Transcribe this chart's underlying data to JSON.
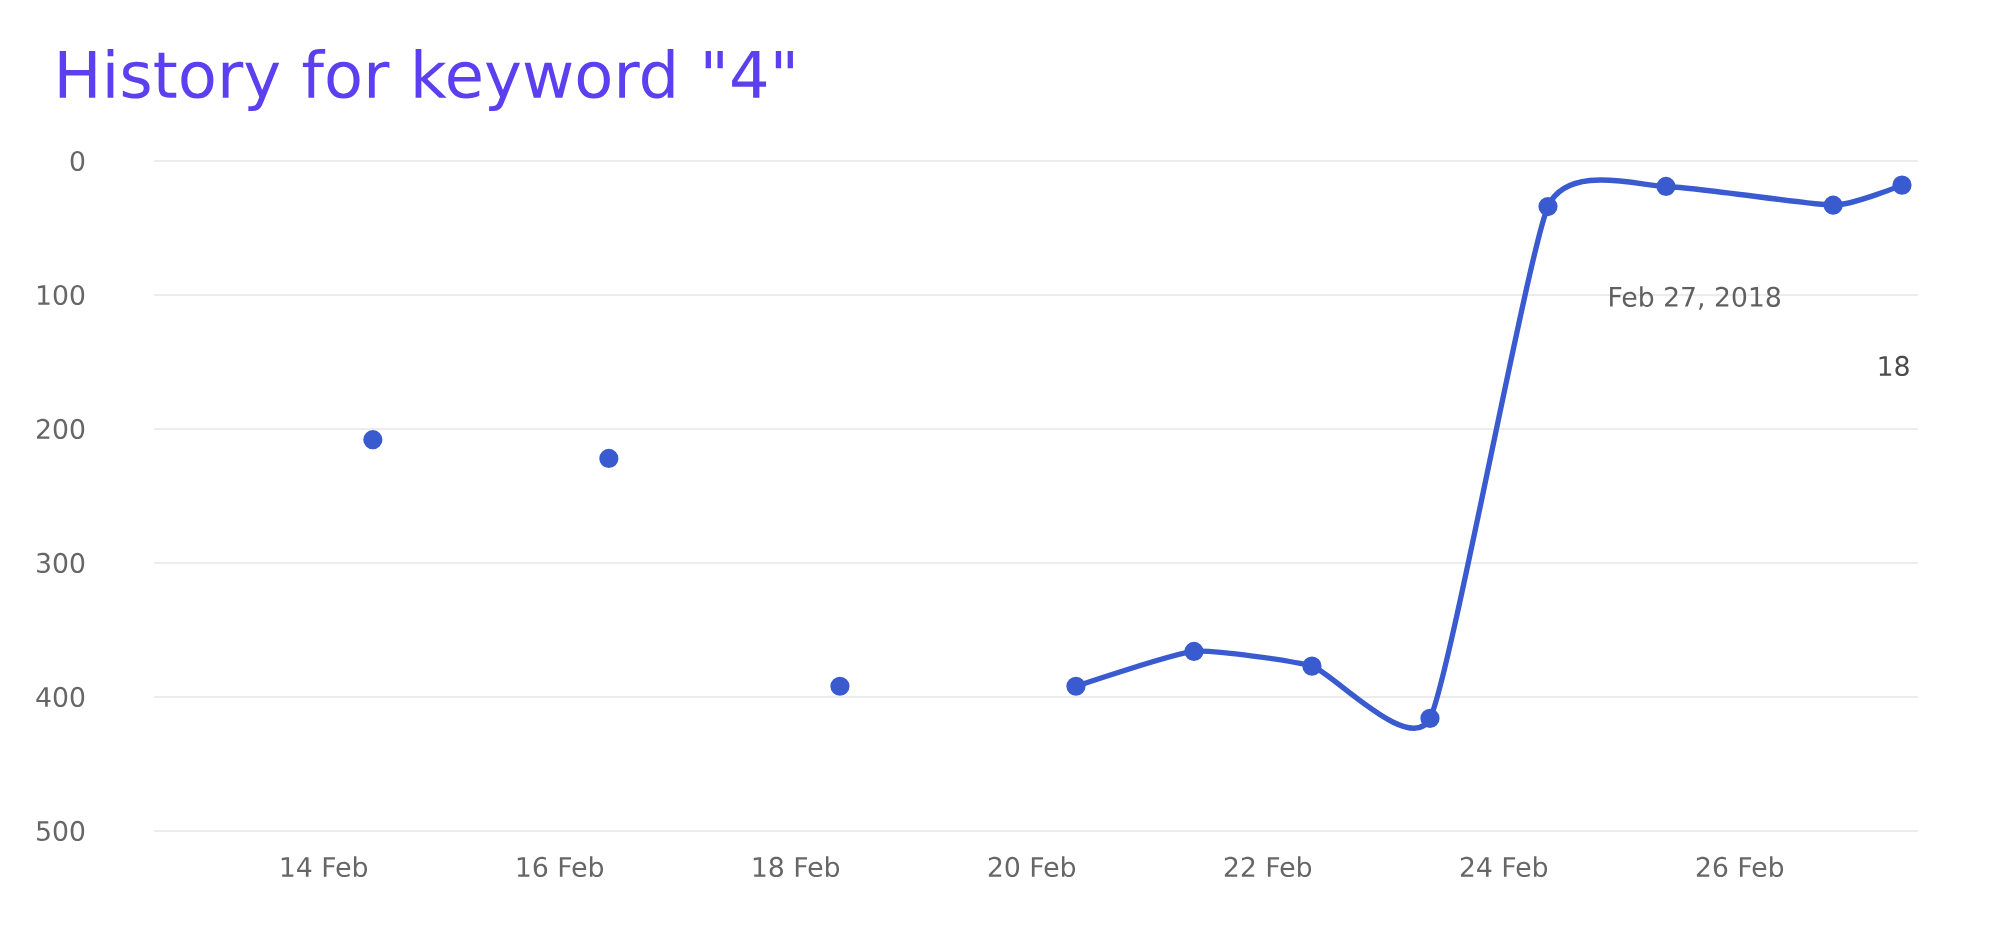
{
  "chart_data": {
    "type": "line",
    "title": "History for keyword \"4\"",
    "x": [
      "2018-02-14T10:00",
      "2018-02-15T09:00",
      "2018-02-16T10:00",
      "2018-02-17T09:00",
      "2018-02-18T09:00",
      "2018-02-19T09:00",
      "2018-02-20T09:00",
      "2018-02-21T09:00",
      "2018-02-22T09:00",
      "2018-02-23T09:00",
      "2018-02-24T09:00",
      "2018-02-25T09:00",
      "2018-02-26T19:00",
      "2018-02-27T09:00"
    ],
    "series": [
      {
        "color": "#3a5bcf",
        "values": [
          208,
          null,
          222,
          null,
          392,
          null,
          392,
          366,
          377,
          416,
          34,
          19,
          33,
          18
        ]
      }
    ],
    "xlim": [
      "2018-02-12T13:30",
      "2018-02-27T12:15"
    ],
    "xticks": [
      {
        "value": "2018-02-14",
        "label": "14 Feb"
      },
      {
        "value": "2018-02-16",
        "label": "16 Feb"
      },
      {
        "value": "2018-02-18",
        "label": "18 Feb"
      },
      {
        "value": "2018-02-20",
        "label": "20 Feb"
      },
      {
        "value": "2018-02-22",
        "label": "22 Feb"
      },
      {
        "value": "2018-02-24",
        "label": "24 Feb"
      },
      {
        "value": "2018-02-26",
        "label": "26 Feb"
      }
    ],
    "ylim": [
      500,
      0
    ],
    "yticks": [
      0,
      100,
      200,
      300,
      400,
      500
    ],
    "grid": "y",
    "marker": "circle",
    "line_style": "solid",
    "annotations": [
      "Feb 27, 2018",
      "18"
    ]
  }
}
